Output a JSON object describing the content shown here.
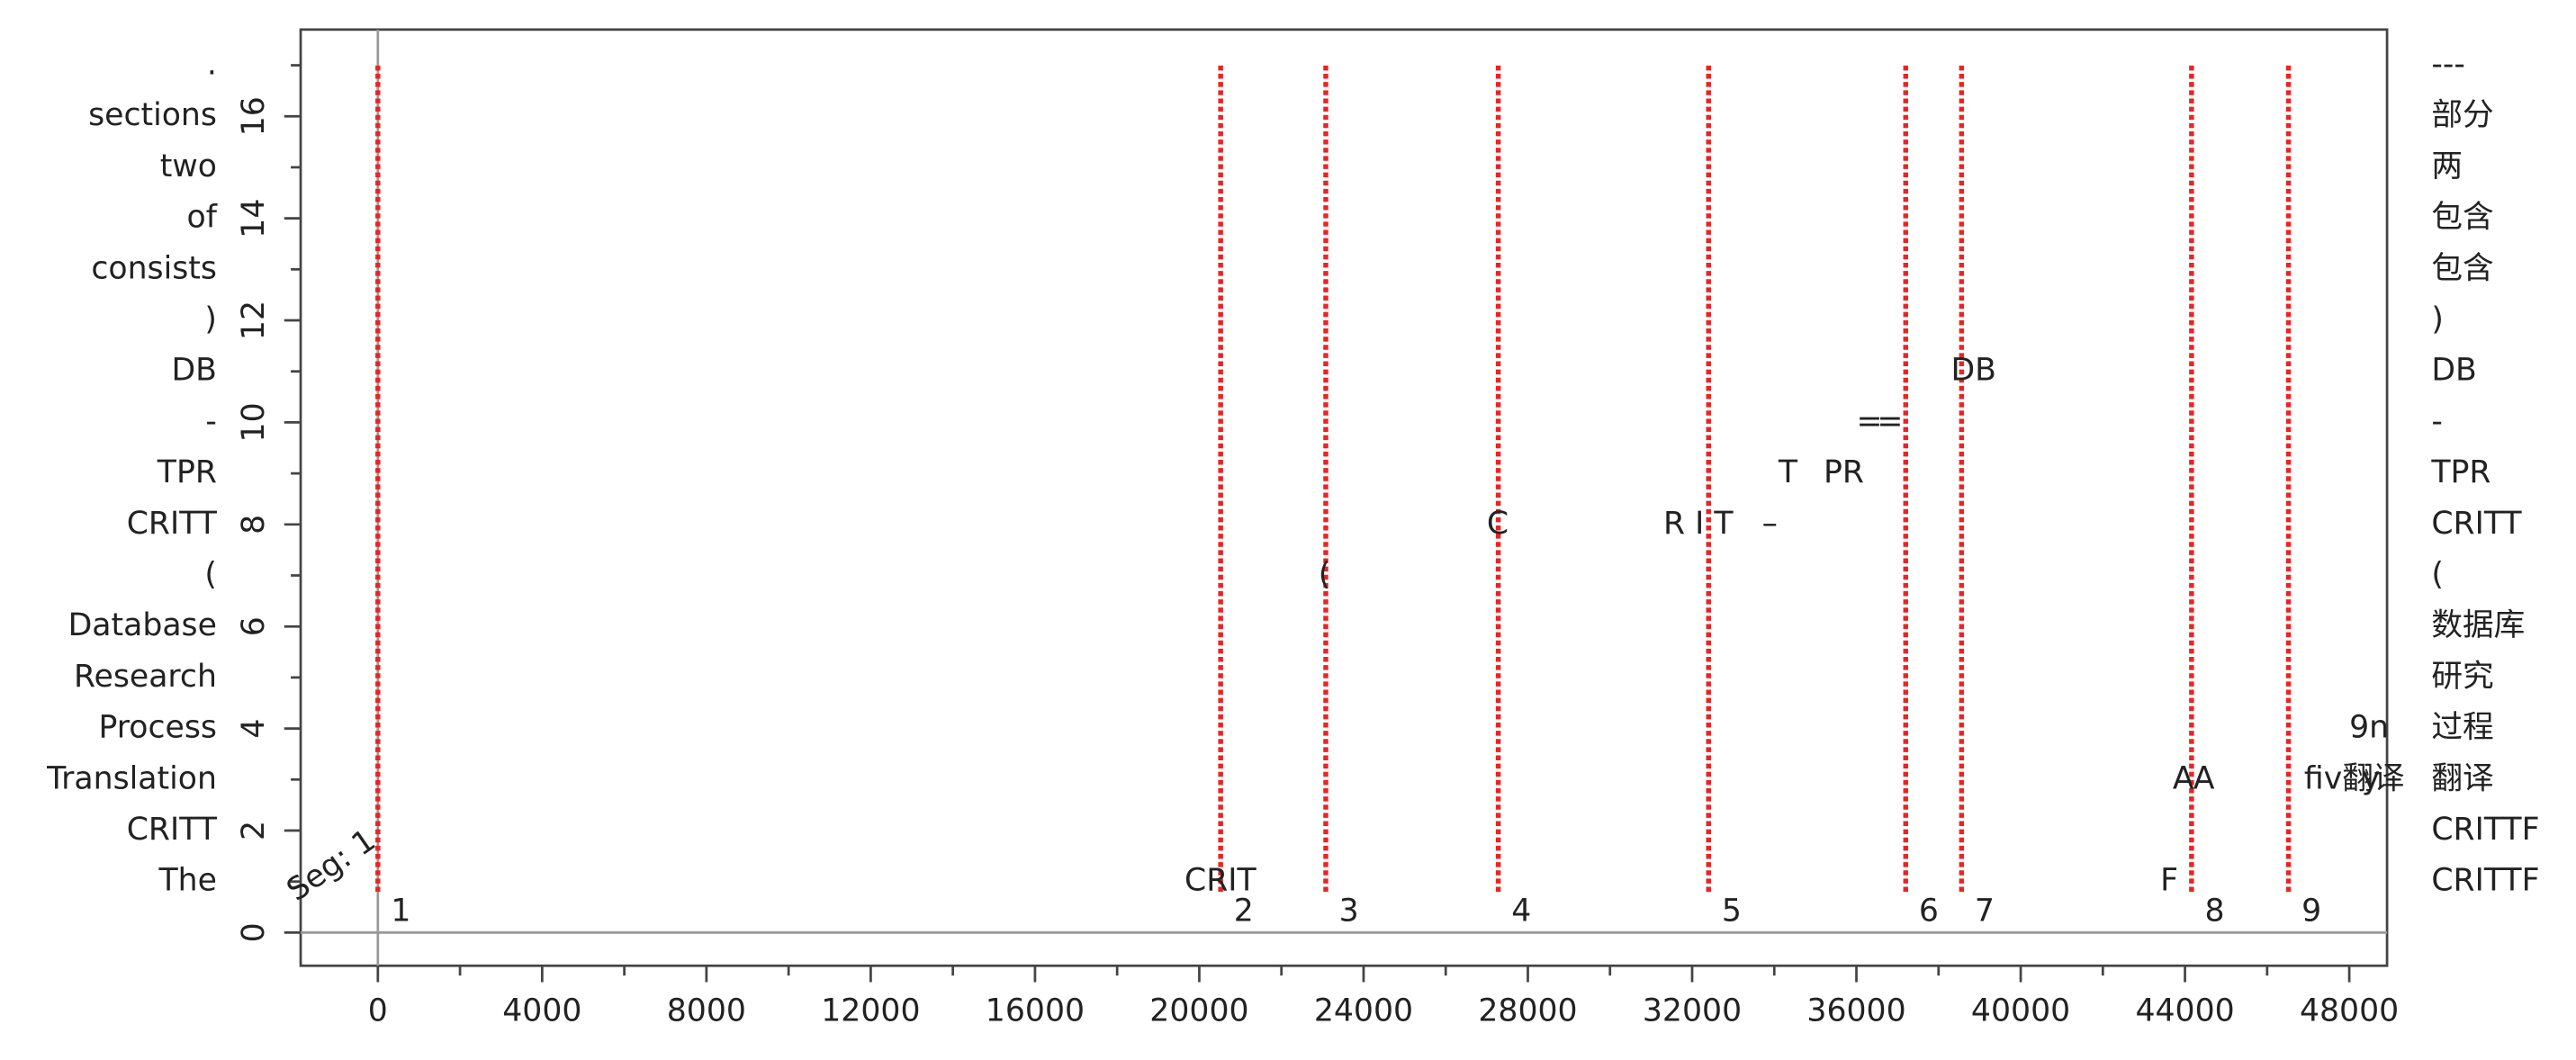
{
  "chart_data": {
    "type": "progression",
    "xlim": [
      -1880,
      48920
    ],
    "ylim": [
      -0.65,
      17.7
    ],
    "xticks": [
      0,
      4000,
      8000,
      12000,
      16000,
      20000,
      24000,
      28000,
      32000,
      36000,
      40000,
      44000,
      48000
    ],
    "xminorticks": [
      2000,
      6000,
      10000,
      14000,
      18000,
      22000,
      26000,
      30000,
      34000,
      38000,
      42000,
      46000
    ],
    "yticks": [
      0,
      2,
      4,
      6,
      8,
      10,
      12,
      14,
      16
    ],
    "yminorticks": [
      1,
      3,
      5,
      7,
      9,
      11,
      13,
      15,
      17
    ],
    "source_tokens": [
      "The",
      "CRITT",
      "Translation",
      "Process",
      "Research",
      "Database",
      "(",
      "CRITT",
      "TPR",
      "-",
      "DB",
      ")",
      "consists",
      "of",
      "two",
      "sections",
      "."
    ],
    "target_tokens": [
      "CRITTF",
      "CRITTF",
      "翻译",
      "过程",
      "研究",
      "数据库",
      "(",
      "CRITT",
      "TPR",
      "-",
      "DB",
      ")",
      "包含",
      "包含",
      "两",
      "部分",
      "---"
    ],
    "segment_annotation": "Seg: 1",
    "segment_color": "#ee2222",
    "segments": [
      {
        "label": "1",
        "x": 0
      },
      {
        "label": "2",
        "x": 20520
      },
      {
        "label": "3",
        "x": 23080
      },
      {
        "label": "4",
        "x": 27280
      },
      {
        "label": "5",
        "x": 32400
      },
      {
        "label": "6",
        "x": 37200
      },
      {
        "label": "7",
        "x": 38560
      },
      {
        "label": "8",
        "x": 44160
      },
      {
        "label": "9",
        "x": 46520
      }
    ],
    "keystrokes": [
      {
        "text": "CRIT",
        "x": 19640,
        "y": 1,
        "color": "#222222"
      },
      {
        "text": "(",
        "x": 22900,
        "y": 7,
        "color": "#222222"
      },
      {
        "text": "C",
        "x": 27000,
        "y": 8,
        "color": "#222222"
      },
      {
        "text": "R I T",
        "x": 31300,
        "y": 8,
        "color": "#222222"
      },
      {
        "text": "–",
        "x": 33700,
        "y": 8,
        "color": "#222222"
      },
      {
        "text": "T",
        "x": 34100,
        "y": 9,
        "color": "#222222"
      },
      {
        "text": "PR",
        "x": 35200,
        "y": 9,
        "color": "#222222"
      },
      {
        "text": "=",
        "x": 36000,
        "y": 10,
        "color": "#222222"
      },
      {
        "text": "=",
        "x": 36500,
        "y": 10,
        "color": "#ee2222"
      },
      {
        "text": "DB",
        "x": 38300,
        "y": 11,
        "color": "#222222"
      },
      {
        "text": "F",
        "x": 43400,
        "y": 1,
        "color": "#222222"
      },
      {
        "text": "A",
        "x": 43700,
        "y": 3,
        "color": "#222222"
      },
      {
        "text": "A",
        "x": 44200,
        "y": 3,
        "color": "#ee2222"
      },
      {
        "text": "fiv翻译",
        "x": 46900,
        "y": 3,
        "color": "#222222"
      },
      {
        "text": "y",
        "x": 48300,
        "y": 3,
        "color": "#ee2222"
      },
      {
        "text": "9n",
        "x": 48000,
        "y": 4,
        "color": "#222222"
      }
    ]
  }
}
